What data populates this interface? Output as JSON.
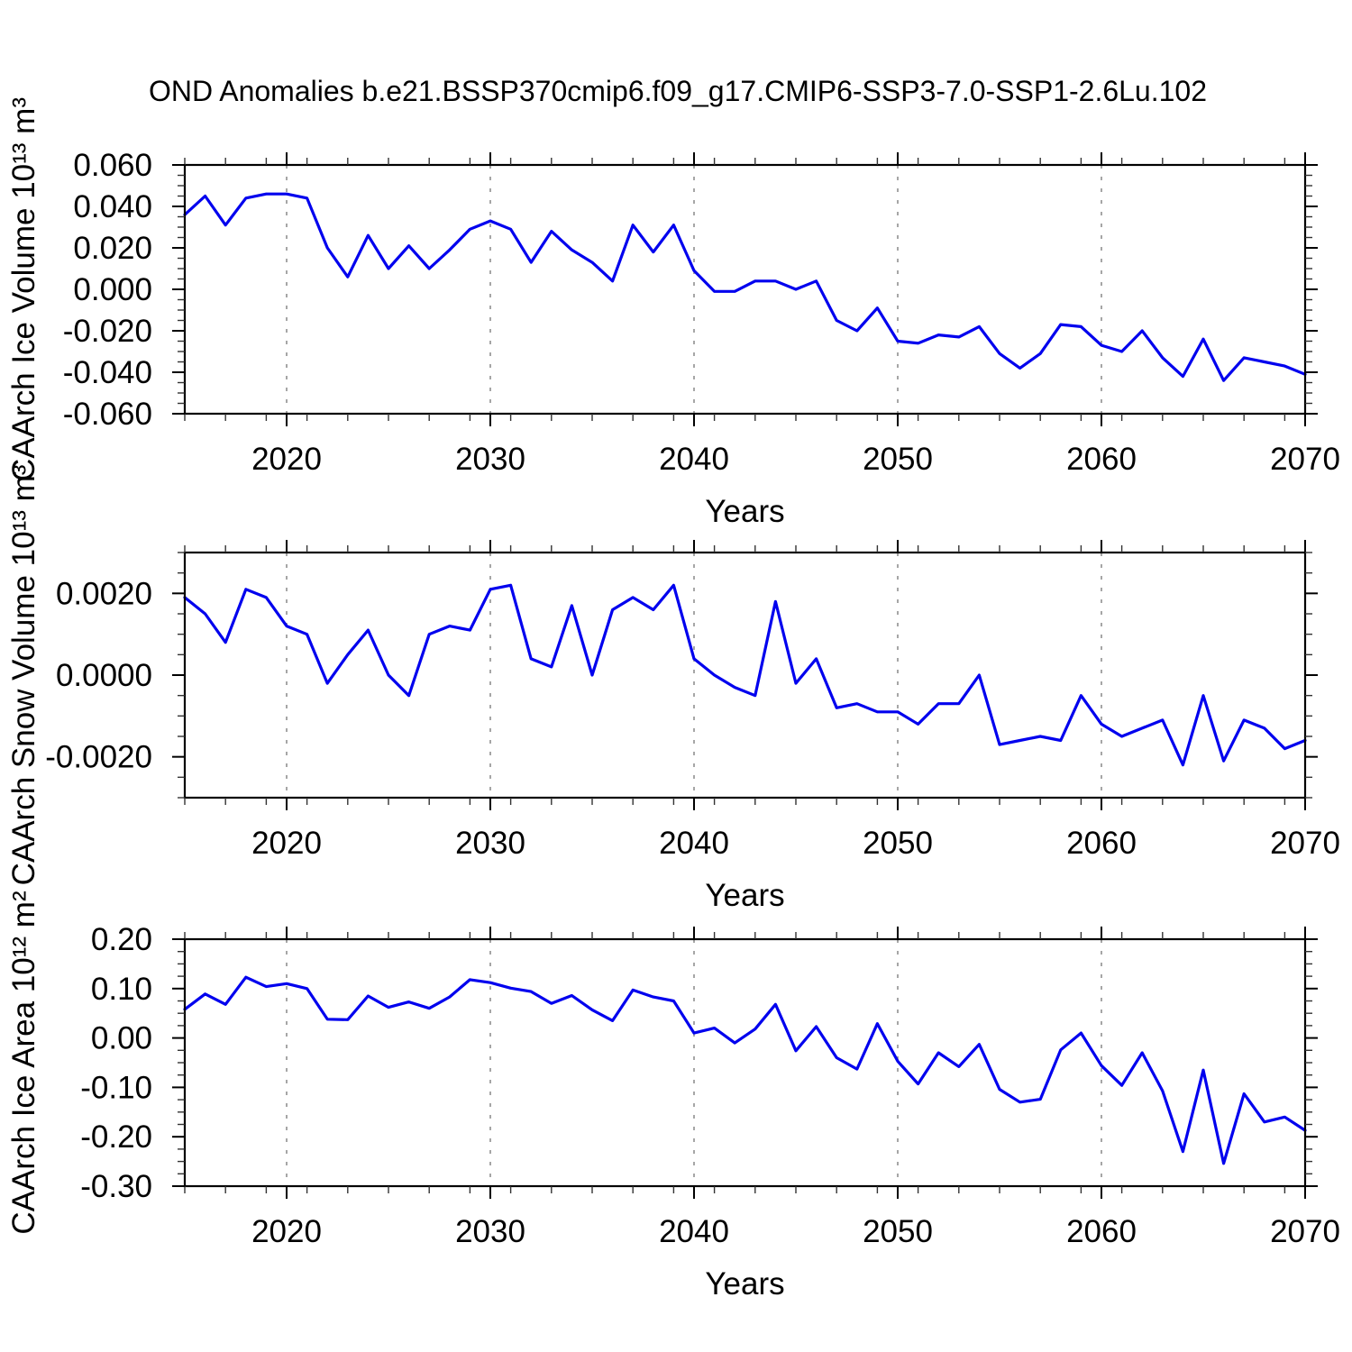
{
  "title": "OND Anomalies b.e21.BSSP370cmip6.f09_g17.CMIP6-SSP3-7.0-SSP1-2.6Lu.102",
  "colors": {
    "background": "#ffffff",
    "line": "#0000ee",
    "axis": "#000000",
    "grid": "#888888",
    "minor_tick": "#333333"
  },
  "chart_data": [
    {
      "type": "line",
      "name": "ice-volume",
      "ylabel": "CAArch Ice Volume 10¹³ m³",
      "xlabel": "Years",
      "ylim": [
        -0.06,
        0.06
      ],
      "yticks": {
        "values": [
          0.06,
          0.04,
          0.02,
          0.0,
          -0.02,
          -0.04,
          -0.06
        ],
        "labels": [
          "0.060",
          "0.040",
          "0.020",
          "0.000",
          "-0.020",
          "-0.040",
          "-0.060"
        ]
      },
      "yminor_step": 0.005,
      "xlim": [
        2015,
        2070
      ],
      "xticks": {
        "values": [
          2020,
          2030,
          2040,
          2050,
          2060,
          2070
        ],
        "labels": [
          "2020",
          "2030",
          "2040",
          "2050",
          "2060",
          "2070"
        ]
      },
      "xminor_step": 2,
      "grid_x": [
        2020,
        2030,
        2040,
        2050,
        2060
      ],
      "line_color": "#0000ee",
      "x": [
        2015,
        2016,
        2017,
        2018,
        2019,
        2020,
        2021,
        2022,
        2023,
        2024,
        2025,
        2026,
        2027,
        2028,
        2029,
        2030,
        2031,
        2032,
        2033,
        2034,
        2035,
        2036,
        2037,
        2038,
        2039,
        2040,
        2041,
        2042,
        2043,
        2044,
        2045,
        2046,
        2047,
        2048,
        2049,
        2050,
        2051,
        2052,
        2053,
        2054,
        2055,
        2056,
        2057,
        2058,
        2059,
        2060,
        2061,
        2062,
        2063,
        2064,
        2065,
        2066,
        2067,
        2068,
        2069,
        2070
      ],
      "values": [
        0.036,
        0.045,
        0.031,
        0.044,
        0.046,
        0.046,
        0.044,
        0.02,
        0.006,
        0.026,
        0.01,
        0.021,
        0.01,
        0.019,
        0.029,
        0.033,
        0.029,
        0.013,
        0.028,
        0.019,
        0.013,
        0.004,
        0.031,
        0.018,
        0.031,
        0.009,
        -0.001,
        -0.001,
        0.004,
        0.004,
        0.0,
        0.004,
        -0.015,
        -0.02,
        -0.009,
        -0.025,
        -0.026,
        -0.022,
        -0.023,
        -0.018,
        -0.031,
        -0.038,
        -0.031,
        -0.017,
        -0.018,
        -0.027,
        -0.03,
        -0.02,
        -0.033,
        -0.042,
        -0.024,
        -0.044,
        -0.033,
        -0.035,
        -0.037,
        -0.041
      ]
    },
    {
      "type": "line",
      "name": "snow-volume",
      "ylabel": "CAArch Snow Volume 10¹³ m³",
      "xlabel": "Years",
      "ylim": [
        -0.003,
        0.003
      ],
      "yticks": {
        "values": [
          0.002,
          0.0,
          -0.002
        ],
        "labels": [
          "0.0020",
          "0.0000",
          "-0.0020"
        ]
      },
      "yminor_step": 0.0005,
      "xlim": [
        2015,
        2070
      ],
      "xticks": {
        "values": [
          2020,
          2030,
          2040,
          2050,
          2060,
          2070
        ],
        "labels": [
          "2020",
          "2030",
          "2040",
          "2050",
          "2060",
          "2070"
        ]
      },
      "xminor_step": 2,
      "grid_x": [
        2020,
        2030,
        2040,
        2050,
        2060
      ],
      "line_color": "#0000ee",
      "x": [
        2015,
        2016,
        2017,
        2018,
        2019,
        2020,
        2021,
        2022,
        2023,
        2024,
        2025,
        2026,
        2027,
        2028,
        2029,
        2030,
        2031,
        2032,
        2033,
        2034,
        2035,
        2036,
        2037,
        2038,
        2039,
        2040,
        2041,
        2042,
        2043,
        2044,
        2045,
        2046,
        2047,
        2048,
        2049,
        2050,
        2051,
        2052,
        2053,
        2054,
        2055,
        2056,
        2057,
        2058,
        2059,
        2060,
        2061,
        2062,
        2063,
        2064,
        2065,
        2066,
        2067,
        2068,
        2069,
        2070
      ],
      "values": [
        0.0019,
        0.0015,
        0.0008,
        0.0021,
        0.0019,
        0.0012,
        0.001,
        -0.0002,
        0.0005,
        0.0011,
        0.0,
        -0.0005,
        0.001,
        0.0012,
        0.0011,
        0.0021,
        0.0022,
        0.0004,
        0.0002,
        0.0017,
        0.0,
        0.0016,
        0.0019,
        0.0016,
        0.0022,
        0.0004,
        0.0,
        -0.0003,
        -0.0005,
        0.0018,
        -0.0002,
        0.0004,
        -0.0008,
        -0.0007,
        -0.0009,
        -0.0009,
        -0.0012,
        -0.0007,
        -0.0007,
        0.0,
        -0.0017,
        -0.0016,
        -0.0015,
        -0.0016,
        -0.0005,
        -0.0012,
        -0.0015,
        -0.0013,
        -0.0011,
        -0.0022,
        -0.0005,
        -0.0021,
        -0.0011,
        -0.0013,
        -0.0018,
        -0.0016
      ]
    },
    {
      "type": "line",
      "name": "ice-area",
      "ylabel": "CAArch Ice Area 10¹² m²",
      "xlabel": "Years",
      "ylim": [
        -0.3,
        0.2
      ],
      "yticks": {
        "values": [
          0.2,
          0.1,
          0.0,
          -0.1,
          -0.2,
          -0.3
        ],
        "labels": [
          "0.20",
          "0.10",
          "0.00",
          "-0.10",
          "-0.20",
          "-0.30"
        ]
      },
      "yminor_step": 0.025,
      "xlim": [
        2015,
        2070
      ],
      "xticks": {
        "values": [
          2020,
          2030,
          2040,
          2050,
          2060,
          2070
        ],
        "labels": [
          "2020",
          "2030",
          "2040",
          "2050",
          "2060",
          "2070"
        ]
      },
      "xminor_step": 2,
      "grid_x": [
        2020,
        2030,
        2040,
        2050,
        2060
      ],
      "line_color": "#0000ee",
      "x": [
        2015,
        2016,
        2017,
        2018,
        2019,
        2020,
        2021,
        2022,
        2023,
        2024,
        2025,
        2026,
        2027,
        2028,
        2029,
        2030,
        2031,
        2032,
        2033,
        2034,
        2035,
        2036,
        2037,
        2038,
        2039,
        2040,
        2041,
        2042,
        2043,
        2044,
        2045,
        2046,
        2047,
        2048,
        2049,
        2050,
        2051,
        2052,
        2053,
        2054,
        2055,
        2056,
        2057,
        2058,
        2059,
        2060,
        2061,
        2062,
        2063,
        2064,
        2065,
        2066,
        2067,
        2068,
        2069,
        2070
      ],
      "values": [
        0.058,
        0.089,
        0.068,
        0.123,
        0.104,
        0.11,
        0.1,
        0.038,
        0.037,
        0.085,
        0.062,
        0.073,
        0.06,
        0.083,
        0.118,
        0.112,
        0.101,
        0.094,
        0.07,
        0.086,
        0.057,
        0.035,
        0.097,
        0.083,
        0.075,
        0.01,
        0.02,
        -0.01,
        0.018,
        0.068,
        -0.026,
        0.023,
        -0.04,
        -0.063,
        0.029,
        -0.047,
        -0.093,
        -0.03,
        -0.058,
        -0.013,
        -0.104,
        -0.13,
        -0.124,
        -0.024,
        0.01,
        -0.056,
        -0.096,
        -0.03,
        -0.107,
        -0.23,
        -0.065,
        -0.254,
        -0.113,
        -0.17,
        -0.16,
        -0.187
      ]
    }
  ]
}
